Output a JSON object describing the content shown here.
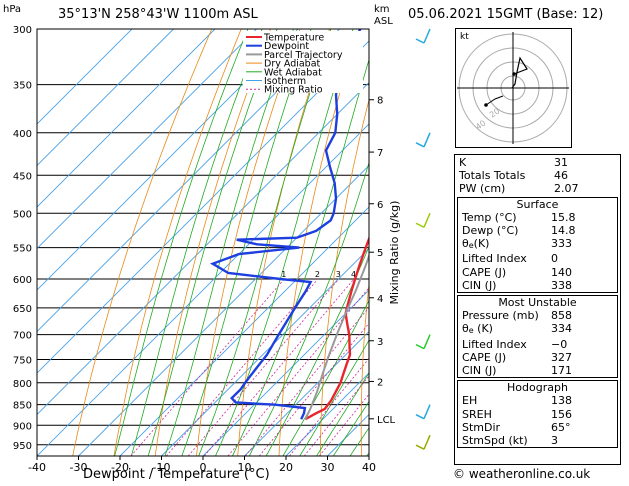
{
  "header": {
    "location": "35°13'N  258°43'W  1100m  ASL",
    "datetime": "05.06.2021  15GMT  (Base: 12)",
    "pressure_unit": "hPa",
    "height_unit": "km",
    "height_ref": "ASL"
  },
  "chart_data": {
    "type": "line",
    "title": "Skew-T log-P diagram",
    "xlabel": "Dewpoint / Temperature (°C)",
    "ylabel": "hPa",
    "right_axis_label": "Mixing Ratio (g/kg)",
    "xlim": [
      -40,
      40
    ],
    "ylim": [
      980,
      300
    ],
    "x_ticks": [
      -40,
      -30,
      -20,
      -10,
      0,
      10,
      20,
      30,
      40
    ],
    "pressure_levels": [
      300,
      350,
      400,
      450,
      500,
      550,
      600,
      650,
      700,
      750,
      800,
      850,
      900,
      950
    ],
    "km_ticks": [
      {
        "label": "8",
        "p": 365
      },
      {
        "label": "7",
        "p": 422
      },
      {
        "label": "6",
        "p": 487
      },
      {
        "label": "5",
        "p": 557
      },
      {
        "label": "4",
        "p": 632
      },
      {
        "label": "3",
        "p": 712
      },
      {
        "label": "2",
        "p": 797
      },
      {
        "label": "LCL",
        "p": 884
      }
    ],
    "mixing_ratio_labels": [
      "1",
      "2",
      "3",
      "4",
      "6",
      "8",
      "10",
      "16",
      "20",
      "25"
    ],
    "mixing_ratio_values": [
      1,
      2,
      3,
      4,
      6,
      8,
      10,
      16,
      20,
      25
    ],
    "legend": [
      "Temperature",
      "Dewpoint",
      "Parcel Trajectory",
      "Dry Adiabat",
      "Wet Adiabat",
      "Isotherm",
      "Mixing Ratio"
    ],
    "series": [
      {
        "name": "Temperature",
        "color": "#e8242c",
        "points": [
          [
            15.8,
            885
          ],
          [
            17,
            870
          ],
          [
            18,
            860
          ],
          [
            17.5,
            840
          ],
          [
            16.5,
            820
          ],
          [
            15.5,
            800
          ],
          [
            14,
            780
          ],
          [
            12.5,
            760
          ],
          [
            11,
            740
          ],
          [
            8.5,
            720
          ],
          [
            6,
            700
          ],
          [
            3,
            680
          ],
          [
            0,
            660
          ],
          [
            -2,
            640
          ],
          [
            -4,
            620
          ],
          [
            -6,
            600
          ],
          [
            -8,
            580
          ],
          [
            -10,
            560
          ],
          [
            -12,
            540
          ],
          [
            -14,
            520
          ],
          [
            -17,
            500
          ],
          [
            -20,
            480
          ],
          [
            -23,
            460
          ],
          [
            -26,
            440
          ],
          [
            -29,
            420
          ],
          [
            -33,
            400
          ],
          [
            -37,
            380
          ],
          [
            -41,
            360
          ],
          [
            -45,
            340
          ],
          [
            -49,
            320
          ],
          [
            -53,
            300
          ]
        ]
      },
      {
        "name": "Dewpoint",
        "color": "#1e3fe0",
        "points": [
          [
            14.8,
            885
          ],
          [
            14,
            870
          ],
          [
            13,
            858
          ],
          [
            5,
            850
          ],
          [
            -5,
            845
          ],
          [
            -7,
            835
          ],
          [
            -7,
            815
          ],
          [
            -7.5,
            800
          ],
          [
            -8,
            780
          ],
          [
            -8.5,
            760
          ],
          [
            -9,
            740
          ],
          [
            -10,
            720
          ],
          [
            -11,
            700
          ],
          [
            -12,
            680
          ],
          [
            -13,
            660
          ],
          [
            -14,
            640
          ],
          [
            -15,
            620
          ],
          [
            -16,
            605
          ],
          [
            -24,
            600
          ],
          [
            -38,
            590
          ],
          [
            -44,
            575
          ],
          [
            -40,
            560
          ],
          [
            -27,
            550
          ],
          [
            -38,
            545
          ],
          [
            -44,
            538
          ],
          [
            -30,
            535
          ],
          [
            -27,
            525
          ],
          [
            -26,
            510
          ],
          [
            -27,
            500
          ],
          [
            -30,
            480
          ],
          [
            -34,
            460
          ],
          [
            -39,
            440
          ],
          [
            -44,
            420
          ],
          [
            -46,
            400
          ],
          [
            -50,
            380
          ],
          [
            -55,
            360
          ],
          [
            -59,
            340
          ],
          [
            -62,
            320
          ],
          [
            -65,
            300
          ]
        ]
      },
      {
        "name": "Parcel Trajectory",
        "color": "#999999",
        "points": [
          [
            15.8,
            885
          ],
          [
            14.5,
            860
          ],
          [
            12,
            820
          ],
          [
            9,
            780
          ],
          [
            6,
            740
          ],
          [
            3,
            700
          ],
          [
            0,
            660
          ],
          [
            -3,
            620
          ],
          [
            -6.5,
            580
          ],
          [
            -10.5,
            540
          ],
          [
            -15,
            500
          ],
          [
            -20,
            460
          ],
          [
            -26,
            420
          ],
          [
            -33,
            380
          ],
          [
            -41,
            340
          ],
          [
            -50,
            300
          ]
        ]
      }
    ],
    "wind_barbs": [
      {
        "p": 300,
        "color": "#22aadd"
      },
      {
        "p": 400,
        "color": "#22aadd"
      },
      {
        "p": 500,
        "color": "#99cc00"
      },
      {
        "p": 700,
        "color": "#22cc22"
      },
      {
        "p": 850,
        "color": "#22aadd"
      },
      {
        "p": 925,
        "color": "#99aa00"
      }
    ]
  },
  "hodograph": {
    "unit_label": "kt",
    "ring_labels": [
      "20",
      "40"
    ]
  },
  "indices": {
    "k_label": "K",
    "k_value": "31",
    "tt_label": "Totals Totals",
    "tt_value": "46",
    "pw_label": "PW (cm)",
    "pw_value": "2.07"
  },
  "surface": {
    "title": "Surface",
    "temp_label": "Temp (°C)",
    "temp_value": "15.8",
    "dewp_label": "Dewp (°C)",
    "dewp_value": "14.8",
    "theta_label": "θ",
    "theta_sub": "e",
    "theta_unit": "(K)",
    "theta_value": "333",
    "li_label": "Lifted Index",
    "li_value": "0",
    "cape_label": "CAPE (J)",
    "cape_value": "140",
    "cin_label": "CIN (J)",
    "cin_value": "338"
  },
  "most_unstable": {
    "title": "Most Unstable",
    "pressure_label": "Pressure (mb)",
    "pressure_value": "858",
    "theta_label": "θ",
    "theta_sub": "e",
    "theta_unit": " (K)",
    "theta_value": "334",
    "li_label": "Lifted Index",
    "li_value": "−0",
    "cape_label": "CAPE (J)",
    "cape_value": "327",
    "cin_label": "CIN (J)",
    "cin_value": "171"
  },
  "hodograph_table": {
    "title": "Hodograph",
    "eh_label": "EH",
    "eh_value": "138",
    "sreh_label": "SREH",
    "sreh_value": "156",
    "stmdir_label": "StmDir",
    "stmdir_value": "65°",
    "stmspd_label": "StmSpd (kt)",
    "stmspd_value": "3"
  },
  "footer": "© weatheronline.co.uk"
}
